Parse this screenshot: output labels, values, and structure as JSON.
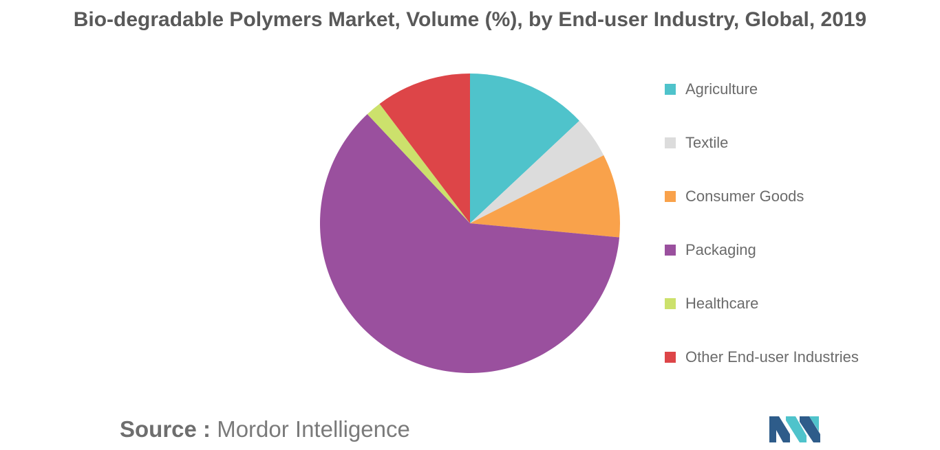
{
  "chart_data": {
    "type": "pie",
    "title": "Bio-degradable Polymers Market, Volume (%), by End-user Industry, Global, 2019",
    "legend_placement": "right",
    "slices": [
      {
        "label": "Agriculture",
        "value": 13.0,
        "color": "#4FC3CB"
      },
      {
        "label": "Textile",
        "value": 4.5,
        "color": "#DCDCDC"
      },
      {
        "label": "Consumer Goods",
        "value": 9.0,
        "color": "#F9A24B"
      },
      {
        "label": "Packaging",
        "value": 61.5,
        "color": "#9A509E"
      },
      {
        "label": "Healthcare",
        "value": 1.7,
        "color": "#CCE16C"
      },
      {
        "label": "Other End-user Industries",
        "value": 10.3,
        "color": "#DD4548"
      }
    ]
  },
  "source": {
    "prefix": "Source :",
    "text": "Mordor Intelligence"
  },
  "logo": {
    "icon": "mordor-intelligence-logo-icon",
    "colors": [
      "#2E5C8A",
      "#4FC3CB"
    ]
  }
}
